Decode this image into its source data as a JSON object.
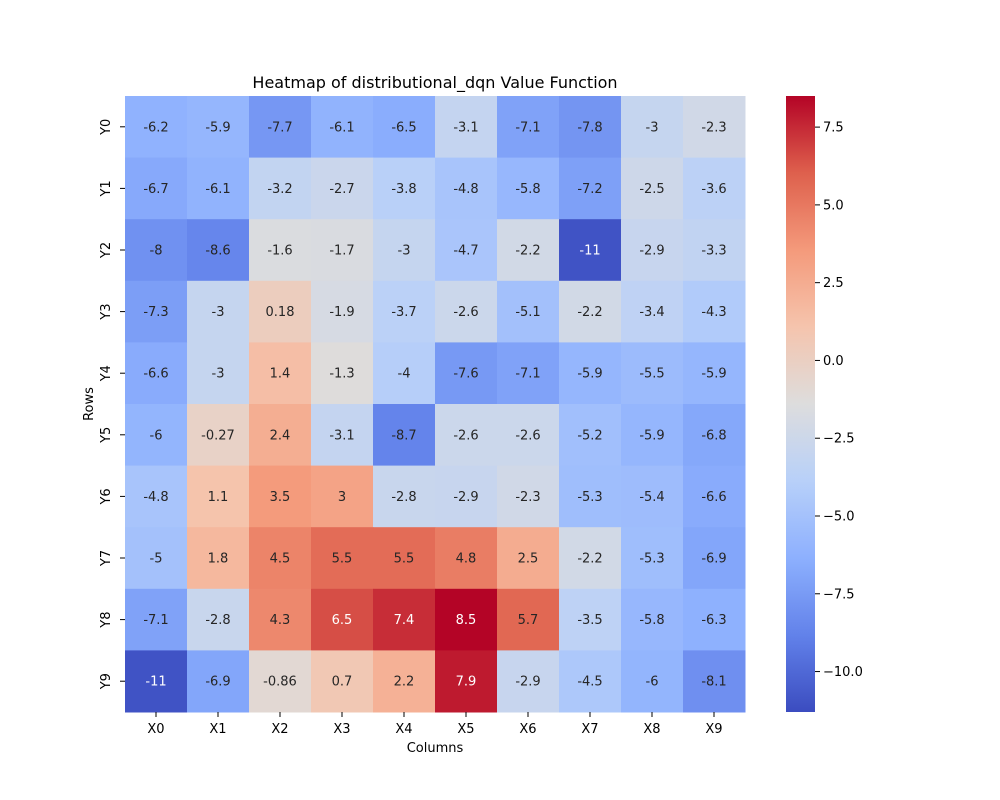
{
  "chart_data": {
    "type": "heatmap",
    "title": "Heatmap of distributional_dqn Value Function",
    "xlabel": "Columns",
    "ylabel": "Rows",
    "x_categories": [
      "X0",
      "X1",
      "X2",
      "X3",
      "X4",
      "X5",
      "X6",
      "X7",
      "X8",
      "X9"
    ],
    "y_categories": [
      "Y0",
      "Y1",
      "Y2",
      "Y3",
      "Y4",
      "Y5",
      "Y6",
      "Y7",
      "Y8",
      "Y9"
    ],
    "values": [
      [
        -6.2,
        -5.9,
        -7.7,
        -6.1,
        -6.5,
        -3.1,
        -7.1,
        -7.8,
        -3,
        -2.3
      ],
      [
        -6.7,
        -6.1,
        -3.2,
        -2.7,
        -3.8,
        -4.8,
        -5.8,
        -7.2,
        -2.5,
        -3.6
      ],
      [
        -8,
        -8.6,
        -1.6,
        -1.7,
        -3,
        -4.7,
        -2.2,
        -11,
        -2.9,
        -3.3
      ],
      [
        -7.3,
        -3,
        0.18,
        -1.9,
        -3.7,
        -2.6,
        -5.1,
        -2.2,
        -3.4,
        -4.3
      ],
      [
        -6.6,
        -3,
        1.4,
        -1.3,
        -4,
        -7.6,
        -7.1,
        -5.9,
        -5.5,
        -5.9
      ],
      [
        -6,
        -0.27,
        2.4,
        -3.1,
        -8.7,
        -2.6,
        -2.6,
        -5.2,
        -5.9,
        -6.8
      ],
      [
        -4.8,
        1.1,
        3.5,
        3,
        -2.8,
        -2.9,
        -2.3,
        -5.3,
        -5.4,
        -6.6
      ],
      [
        -5,
        1.8,
        4.5,
        5.5,
        5.5,
        4.8,
        2.5,
        -2.2,
        -5.3,
        -6.9
      ],
      [
        -7.1,
        -2.8,
        4.3,
        6.5,
        7.4,
        8.5,
        5.7,
        -3.5,
        -5.8,
        -6.3
      ],
      [
        -11,
        -6.9,
        -0.86,
        0.7,
        2.2,
        7.9,
        -2.9,
        -4.5,
        -6,
        -8.1
      ]
    ],
    "annotations": [
      [
        "-6.2",
        "-5.9",
        "-7.7",
        "-6.1",
        "-6.5",
        "-3.1",
        "-7.1",
        "-7.8",
        "-3",
        "-2.3"
      ],
      [
        "-6.7",
        "-6.1",
        "-3.2",
        "-2.7",
        "-3.8",
        "-4.8",
        "-5.8",
        "-7.2",
        "-2.5",
        "-3.6"
      ],
      [
        "-8",
        "-8.6",
        "-1.6",
        "-1.7",
        "-3",
        "-4.7",
        "-2.2",
        "-11",
        "-2.9",
        "-3.3"
      ],
      [
        "-7.3",
        "-3",
        "0.18",
        "-1.9",
        "-3.7",
        "-2.6",
        "-5.1",
        "-2.2",
        "-3.4",
        "-4.3"
      ],
      [
        "-6.6",
        "-3",
        "1.4",
        "-1.3",
        "-4",
        "-7.6",
        "-7.1",
        "-5.9",
        "-5.5",
        "-5.9"
      ],
      [
        "-6",
        "-0.27",
        "2.4",
        "-3.1",
        "-8.7",
        "-2.6",
        "-2.6",
        "-5.2",
        "-5.9",
        "-6.8"
      ],
      [
        "-4.8",
        "1.1",
        "3.5",
        "3",
        "-2.8",
        "-2.9",
        "-2.3",
        "-5.3",
        "-5.4",
        "-6.6"
      ],
      [
        "-5",
        "1.8",
        "4.5",
        "5.5",
        "5.5",
        "4.8",
        "2.5",
        "-2.2",
        "-5.3",
        "-6.9"
      ],
      [
        "-7.1",
        "-2.8",
        "4.3",
        "6.5",
        "7.4",
        "8.5",
        "5.7",
        "-3.5",
        "-5.8",
        "-6.3"
      ],
      [
        "-11",
        "-6.9",
        "-0.86",
        "0.7",
        "2.2",
        "7.9",
        "-2.9",
        "-4.5",
        "-6",
        "-8.1"
      ]
    ],
    "colormap": "coolwarm",
    "vmin": -11.3,
    "vmax": 8.5,
    "colorbar": {
      "ticks": [
        7.5,
        5.0,
        2.5,
        0.0,
        -2.5,
        -5.0,
        -7.5,
        -10.0
      ],
      "tick_labels": [
        "7.5",
        "5.0",
        "2.5",
        "0.0",
        "−2.5",
        "−5.0",
        "−7.5",
        "−10.0"
      ]
    },
    "grid": false,
    "legend": "colorbar-right"
  }
}
